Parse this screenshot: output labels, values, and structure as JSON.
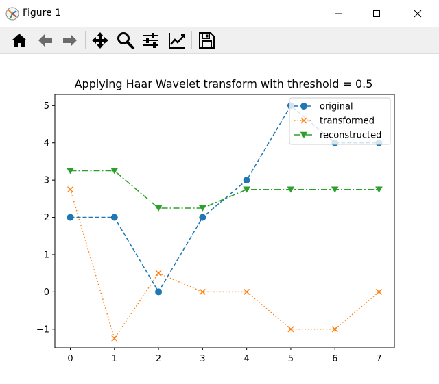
{
  "window": {
    "title": "Figure 1",
    "controls": [
      "minimize",
      "maximize",
      "close"
    ]
  },
  "toolbar": {
    "buttons": [
      {
        "name": "home",
        "icon": "home-icon"
      },
      {
        "name": "back",
        "icon": "arrow-left-icon"
      },
      {
        "name": "forward",
        "icon": "arrow-right-icon"
      },
      {
        "name": "pan",
        "icon": "move-icon"
      },
      {
        "name": "zoom",
        "icon": "magnifier-icon"
      },
      {
        "name": "configure-subplots",
        "icon": "sliders-icon"
      },
      {
        "name": "edit-axis",
        "icon": "line-chart-icon"
      },
      {
        "name": "save",
        "icon": "floppy-disk-icon"
      }
    ]
  },
  "chart_data": {
    "type": "line",
    "title": "Applying Haar Wavelet transform with threshold = 0.5",
    "xlabel": "",
    "ylabel": "",
    "xlim": [
      -0.35,
      7.35
    ],
    "ylim": [
      -1.5,
      5.3
    ],
    "xticks": [
      0,
      1,
      2,
      3,
      4,
      5,
      6,
      7
    ],
    "yticks": [
      -1,
      0,
      1,
      2,
      3,
      4,
      5
    ],
    "ytick_labels": [
      "−1",
      "0",
      "1",
      "2",
      "3",
      "4",
      "5"
    ],
    "x": [
      0,
      1,
      2,
      3,
      4,
      5,
      6,
      7
    ],
    "legend_position": "top-right",
    "series": [
      {
        "name": "original",
        "values": [
          2,
          2,
          0,
          2,
          3,
          5,
          4,
          4
        ],
        "color": "#1f77b4",
        "marker": "circle",
        "linestyle": "dashed"
      },
      {
        "name": "transformed",
        "values": [
          2.75,
          -1.25,
          0.5,
          0,
          0,
          -1,
          -1,
          0
        ],
        "color": "#ff7f0e",
        "marker": "x",
        "linestyle": "dotted"
      },
      {
        "name": "reconstructed",
        "values": [
          3.25,
          3.25,
          2.25,
          2.25,
          2.75,
          2.75,
          2.75,
          2.75
        ],
        "color": "#2ca02c",
        "marker": "triangle-down",
        "linestyle": "dashdot"
      }
    ]
  }
}
